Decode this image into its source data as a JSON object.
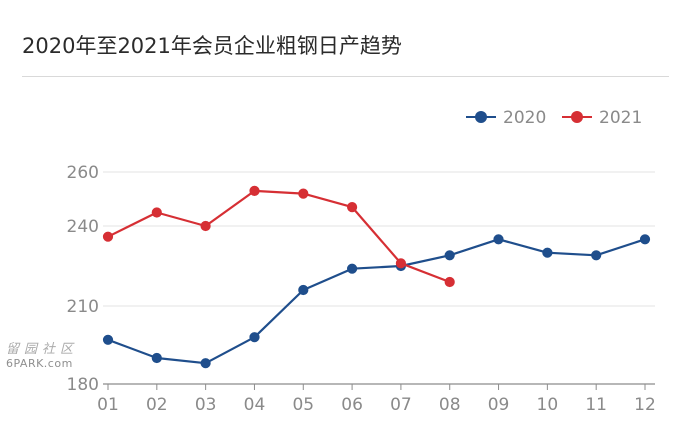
{
  "watermark": {
    "site_name": "留园社区",
    "site_url": "6PARK.com"
  },
  "chart_data": {
    "type": "line",
    "title": "2020年至2021年会员企业粗钢日产趋势",
    "categories": [
      "01",
      "02",
      "03",
      "04",
      "05",
      "06",
      "07",
      "08",
      "09",
      "10",
      "11",
      "12"
    ],
    "yticks": [
      260,
      240,
      210,
      180
    ],
    "ylim": [
      180,
      260
    ],
    "grid": true,
    "legend_position": "top-right",
    "series": [
      {
        "name": "2020",
        "color": "#1f4e8c",
        "values": [
          197,
          190,
          188,
          198,
          216,
          224,
          225,
          229,
          235,
          230,
          229,
          235
        ]
      },
      {
        "name": "2021",
        "color": "#d62f34",
        "values": [
          236,
          245,
          240,
          253,
          252,
          247,
          226,
          219,
          null,
          null,
          null,
          null
        ]
      }
    ]
  }
}
